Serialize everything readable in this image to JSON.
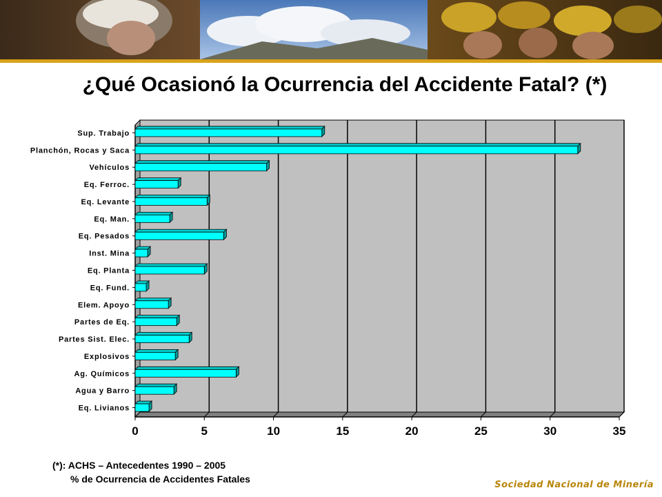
{
  "slide": {
    "title": "¿Qué Ocasionó la Ocurrencia del Accidente Fatal? (*)",
    "footnote_line1": "(*): ACHS – Antecedentes 1990 – 2005",
    "footnote_line2": "% de Ocurrencia de Accidentes Fatales",
    "organization": "Sociedad Nacional de Minería",
    "colors": {
      "bar": "#00ffff",
      "plot_bg": "#c0c0c0",
      "org_text": "#b8860b",
      "accent_line": "#d9a21b"
    }
  },
  "chart_data": {
    "type": "bar",
    "orientation": "horizontal",
    "categories": [
      "Sup. Trabajo",
      "Planchón, Rocas y Saca",
      "Vehículos",
      "Eq. Ferroc.",
      "Eq. Levante",
      "Eq. Man.",
      "Eq. Pesados",
      "Inst. Mina",
      "Eq. Planta",
      "Eq. Fund.",
      "Elem. Apoyo",
      "Partes de Eq.",
      "Partes Sist. Elec.",
      "Explosivos",
      "Ag. Químicos",
      "Agua y Barro",
      "Eq. Livianos"
    ],
    "values": [
      13.5,
      32,
      9.5,
      3.1,
      5.2,
      2.5,
      6.4,
      0.9,
      5.0,
      0.8,
      2.4,
      3.0,
      3.9,
      2.9,
      7.3,
      2.8,
      1.0
    ],
    "xlim": [
      0,
      35
    ],
    "xticks": [
      0,
      5,
      10,
      15,
      20,
      25,
      30,
      35
    ],
    "grid": true,
    "legend": "none"
  }
}
